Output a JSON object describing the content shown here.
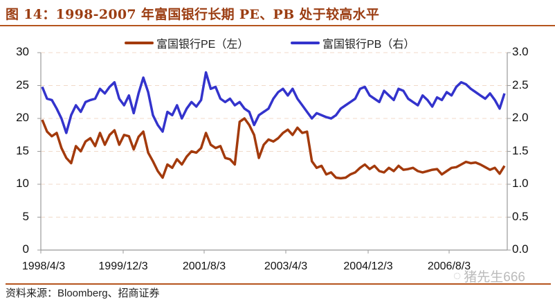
{
  "header": {
    "title": "图 14：1998-2007 年富国银行长期 PE、PB 处于较高水平"
  },
  "footer": {
    "source": "资料来源：Bloomberg、招商证券",
    "watermark": "猪先生666"
  },
  "colors": {
    "pe": "#a33a0c",
    "pb": "#3333cc",
    "accent": "#b5541d",
    "grid": "#f0d9c8",
    "axis": "#999999"
  },
  "chart_data": {
    "type": "line",
    "title": "1998-2007 年富国银行长期 PE、PB 处于较高水平",
    "xlabel": "",
    "ylabel_left": "PE",
    "ylabel_right": "PB",
    "ylim_left": [
      0,
      30
    ],
    "ylim_right": [
      0,
      3.0
    ],
    "yticks_left": [
      "0",
      "5",
      "10",
      "15",
      "20",
      "25",
      "30"
    ],
    "yticks_right": [
      "0.0",
      "0.5",
      "1.0",
      "1.5",
      "2.0",
      "2.5",
      "3.0"
    ],
    "xticks": [
      "1998/4/3",
      "1999/12/3",
      "2001/8/3",
      "2003/4/3",
      "2004/12/3",
      "2006/8/3"
    ],
    "grid": true,
    "legend_position": "top",
    "legend": [
      "富国银行PE（左）",
      "富国银行PB（右）"
    ],
    "x_index": [
      0,
      1,
      2,
      3,
      4,
      5,
      6,
      7,
      8,
      9,
      10,
      11,
      12,
      13,
      14,
      15,
      16,
      17,
      18,
      19,
      20,
      21,
      22,
      23,
      24,
      25,
      26,
      27,
      28,
      29,
      30,
      31,
      32,
      33,
      34,
      35,
      36,
      37,
      38,
      39,
      40,
      41,
      42,
      43,
      44,
      45,
      46,
      47,
      48,
      49,
      50,
      51,
      52,
      53,
      54,
      55,
      56,
      57,
      58,
      59,
      60,
      61,
      62,
      63,
      64,
      65,
      66,
      67,
      68,
      69,
      70,
      71,
      72,
      73,
      74,
      75,
      76,
      77,
      78,
      79,
      80,
      81,
      82,
      83,
      84,
      85,
      86,
      87,
      88,
      89,
      90,
      91,
      92,
      93,
      94,
      95,
      96
    ],
    "series": [
      {
        "name": "富国银行PE（左）",
        "axis": "left",
        "values": [
          19.8,
          18.0,
          17.3,
          17.8,
          15.5,
          14.0,
          13.2,
          15.8,
          15.0,
          16.5,
          17.0,
          15.8,
          17.8,
          16.0,
          17.5,
          18.2,
          16.0,
          17.5,
          17.3,
          15.3,
          17.2,
          18.0,
          14.8,
          13.5,
          12.0,
          11.0,
          13.0,
          12.5,
          13.8,
          13.0,
          14.2,
          15.0,
          14.8,
          15.5,
          17.8,
          16.0,
          15.5,
          15.8,
          14.0,
          13.8,
          13.0,
          19.5,
          20.0,
          19.0,
          17.5,
          14.0,
          16.0,
          16.8,
          16.5,
          17.0,
          17.8,
          18.3,
          17.5,
          18.6,
          17.8,
          18.0,
          13.5,
          12.5,
          12.8,
          11.5,
          11.8,
          11.0,
          10.9,
          11.0,
          11.5,
          11.8,
          12.5,
          13.0,
          12.3,
          12.8,
          12.0,
          11.8,
          12.5,
          12.0,
          12.8,
          12.2,
          12.3,
          12.5,
          12.0,
          11.8,
          12.0,
          12.2,
          12.3,
          11.5,
          12.0,
          12.5,
          12.6,
          13.0,
          13.4,
          13.2,
          13.3,
          13.0,
          12.6,
          12.2,
          12.5,
          11.6,
          12.8
        ]
      },
      {
        "name": "富国银行PB（右）",
        "axis": "right",
        "values": [
          2.48,
          2.3,
          2.28,
          2.15,
          2.0,
          1.78,
          2.05,
          2.2,
          2.1,
          2.25,
          2.28,
          2.3,
          2.45,
          2.38,
          2.48,
          2.55,
          2.3,
          2.2,
          2.35,
          2.08,
          2.38,
          2.62,
          2.4,
          2.05,
          1.9,
          1.8,
          2.1,
          2.05,
          2.2,
          2.0,
          2.15,
          2.25,
          2.18,
          2.28,
          2.7,
          2.45,
          2.48,
          2.3,
          2.25,
          2.3,
          2.2,
          2.25,
          2.15,
          2.1,
          1.9,
          2.05,
          2.1,
          2.15,
          2.3,
          2.4,
          2.45,
          2.35,
          2.45,
          2.3,
          2.2,
          2.1,
          2.0,
          2.08,
          2.05,
          2.02,
          2.0,
          2.05,
          2.15,
          2.2,
          2.25,
          2.3,
          2.45,
          2.48,
          2.35,
          2.3,
          2.25,
          2.42,
          2.35,
          2.28,
          2.45,
          2.42,
          2.3,
          2.25,
          2.2,
          2.35,
          2.28,
          2.18,
          2.32,
          2.28,
          2.4,
          2.35,
          2.48,
          2.55,
          2.52,
          2.45,
          2.4,
          2.35,
          2.3,
          2.38,
          2.28,
          2.15,
          2.38
        ]
      }
    ]
  }
}
